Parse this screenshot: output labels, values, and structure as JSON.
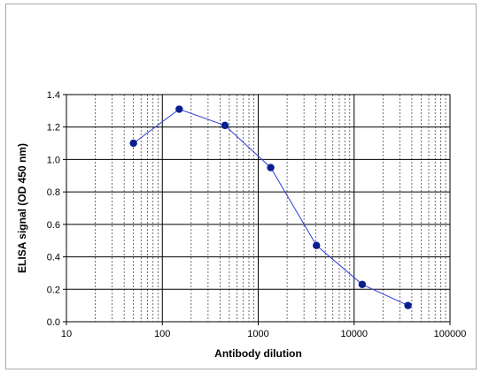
{
  "chart_data": {
    "type": "scatter",
    "title": "",
    "xlabel": "Antibody dilution",
    "ylabel": "ELISA signal (OD 450 nm)",
    "x_scale": "log",
    "xlim": [
      10,
      100000
    ],
    "ylim": [
      0,
      1.4
    ],
    "x_ticks": [
      "10",
      "100",
      "1000",
      "10000",
      "100000"
    ],
    "y_ticks": [
      "0.0",
      "0.2",
      "0.4",
      "0.6",
      "0.8",
      "1.0",
      "1.2",
      "1.4"
    ],
    "grid": true,
    "legend": "none",
    "series": [
      {
        "x": [
          50,
          150,
          450,
          1350,
          4050,
          12150,
          36450
        ],
        "y": [
          1.1,
          1.31,
          1.21,
          0.95,
          0.47,
          0.23,
          0.1
        ],
        "line_color": "#2f3fd6",
        "marker_color": "#0a1f8f",
        "marker": "circle"
      }
    ]
  }
}
